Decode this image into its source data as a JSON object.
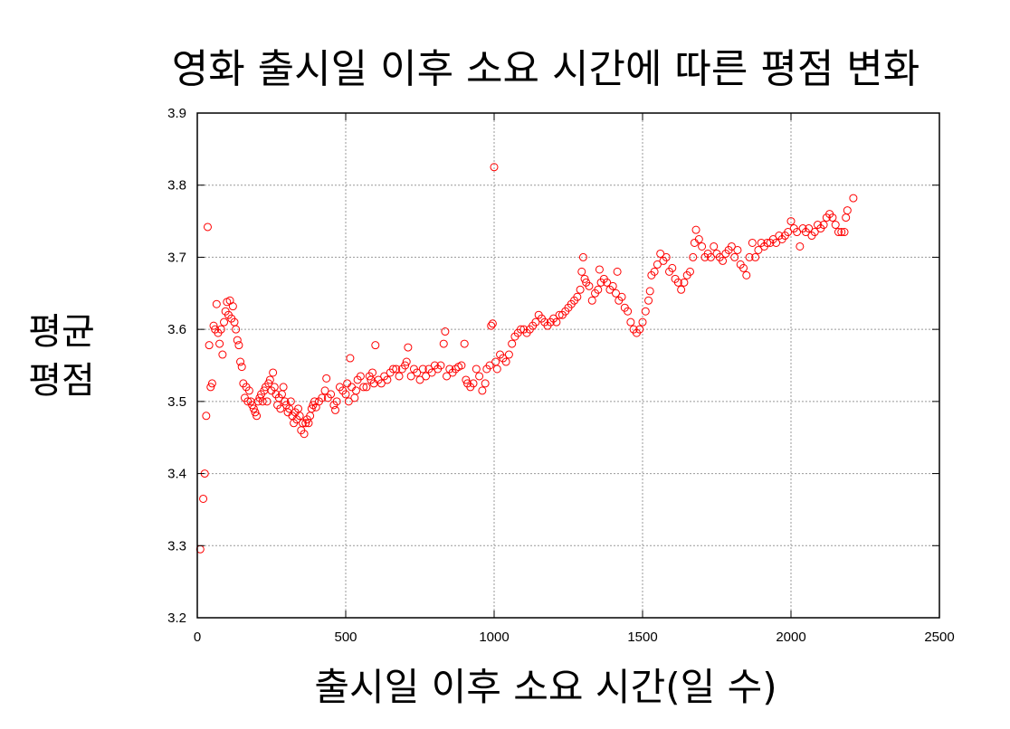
{
  "chart_data": {
    "type": "scatter",
    "title": "영화 출시일 이후 소요 시간에 따른 평점 변화",
    "xlabel": "출시일 이후 소요 시간(일 수)",
    "ylabel_lines": [
      "평균",
      "평점"
    ],
    "xlim": [
      0,
      2500
    ],
    "ylim": [
      3.2,
      3.9
    ],
    "xticks": [
      "0",
      "500",
      "1000",
      "1500",
      "2000",
      "2500"
    ],
    "yticks": [
      "3.2",
      "3.3",
      "3.4",
      "3.5",
      "3.6",
      "3.7",
      "3.8",
      "3.9"
    ],
    "grid": true,
    "marker": "open-circle",
    "series": [
      {
        "color": "#ff0000",
        "points": [
          [
            10,
            3.295
          ],
          [
            20,
            3.365
          ],
          [
            25,
            3.4
          ],
          [
            30,
            3.48
          ],
          [
            35,
            3.742
          ],
          [
            40,
            3.578
          ],
          [
            45,
            3.52
          ],
          [
            50,
            3.525
          ],
          [
            55,
            3.605
          ],
          [
            60,
            3.6
          ],
          [
            65,
            3.635
          ],
          [
            70,
            3.595
          ],
          [
            75,
            3.58
          ],
          [
            80,
            3.6
          ],
          [
            85,
            3.565
          ],
          [
            90,
            3.61
          ],
          [
            95,
            3.625
          ],
          [
            100,
            3.638
          ],
          [
            105,
            3.62
          ],
          [
            110,
            3.64
          ],
          [
            115,
            3.615
          ],
          [
            120,
            3.632
          ],
          [
            125,
            3.61
          ],
          [
            130,
            3.6
          ],
          [
            135,
            3.585
          ],
          [
            140,
            3.578
          ],
          [
            145,
            3.555
          ],
          [
            150,
            3.548
          ],
          [
            155,
            3.525
          ],
          [
            160,
            3.505
          ],
          [
            165,
            3.52
          ],
          [
            170,
            3.5
          ],
          [
            175,
            3.515
          ],
          [
            180,
            3.5
          ],
          [
            185,
            3.495
          ],
          [
            190,
            3.49
          ],
          [
            195,
            3.485
          ],
          [
            200,
            3.48
          ],
          [
            205,
            3.5
          ],
          [
            210,
            3.505
          ],
          [
            215,
            3.51
          ],
          [
            220,
            3.5
          ],
          [
            225,
            3.515
          ],
          [
            230,
            3.52
          ],
          [
            235,
            3.5
          ],
          [
            240,
            3.525
          ],
          [
            245,
            3.53
          ],
          [
            250,
            3.515
          ],
          [
            255,
            3.54
          ],
          [
            260,
            3.52
          ],
          [
            265,
            3.51
          ],
          [
            270,
            3.495
          ],
          [
            275,
            3.505
          ],
          [
            280,
            3.49
          ],
          [
            285,
            3.51
          ],
          [
            290,
            3.52
          ],
          [
            295,
            3.5
          ],
          [
            300,
            3.495
          ],
          [
            305,
            3.485
          ],
          [
            310,
            3.49
          ],
          [
            315,
            3.5
          ],
          [
            320,
            3.48
          ],
          [
            325,
            3.47
          ],
          [
            330,
            3.485
          ],
          [
            335,
            3.475
          ],
          [
            340,
            3.49
          ],
          [
            345,
            3.48
          ],
          [
            350,
            3.46
          ],
          [
            355,
            3.47
          ],
          [
            360,
            3.455
          ],
          [
            365,
            3.47
          ],
          [
            370,
            3.475
          ],
          [
            375,
            3.47
          ],
          [
            380,
            3.48
          ],
          [
            385,
            3.49
          ],
          [
            390,
            3.495
          ],
          [
            395,
            3.5
          ],
          [
            400,
            3.492
          ],
          [
            410,
            3.5
          ],
          [
            420,
            3.505
          ],
          [
            430,
            3.515
          ],
          [
            435,
            3.532
          ],
          [
            440,
            3.505
          ],
          [
            450,
            3.51
          ],
          [
            460,
            3.495
          ],
          [
            465,
            3.488
          ],
          [
            470,
            3.5
          ],
          [
            480,
            3.52
          ],
          [
            490,
            3.515
          ],
          [
            500,
            3.51
          ],
          [
            505,
            3.525
          ],
          [
            510,
            3.5
          ],
          [
            515,
            3.56
          ],
          [
            520,
            3.52
          ],
          [
            530,
            3.505
          ],
          [
            535,
            3.515
          ],
          [
            540,
            3.53
          ],
          [
            550,
            3.535
          ],
          [
            560,
            3.52
          ],
          [
            570,
            3.52
          ],
          [
            580,
            3.535
          ],
          [
            585,
            3.53
          ],
          [
            590,
            3.54
          ],
          [
            595,
            3.525
          ],
          [
            600,
            3.578
          ],
          [
            610,
            3.53
          ],
          [
            620,
            3.525
          ],
          [
            630,
            3.535
          ],
          [
            640,
            3.53
          ],
          [
            650,
            3.54
          ],
          [
            660,
            3.545
          ],
          [
            670,
            3.545
          ],
          [
            680,
            3.535
          ],
          [
            690,
            3.545
          ],
          [
            700,
            3.55
          ],
          [
            705,
            3.555
          ],
          [
            710,
            3.575
          ],
          [
            720,
            3.535
          ],
          [
            730,
            3.545
          ],
          [
            740,
            3.54
          ],
          [
            750,
            3.53
          ],
          [
            760,
            3.545
          ],
          [
            770,
            3.535
          ],
          [
            780,
            3.545
          ],
          [
            790,
            3.54
          ],
          [
            800,
            3.55
          ],
          [
            810,
            3.545
          ],
          [
            820,
            3.55
          ],
          [
            830,
            3.58
          ],
          [
            835,
            3.597
          ],
          [
            840,
            3.535
          ],
          [
            850,
            3.545
          ],
          [
            860,
            3.54
          ],
          [
            870,
            3.545
          ],
          [
            880,
            3.548
          ],
          [
            890,
            3.55
          ],
          [
            900,
            3.58
          ],
          [
            905,
            3.53
          ],
          [
            910,
            3.525
          ],
          [
            920,
            3.52
          ],
          [
            930,
            3.525
          ],
          [
            940,
            3.545
          ],
          [
            950,
            3.535
          ],
          [
            960,
            3.515
          ],
          [
            970,
            3.525
          ],
          [
            975,
            3.545
          ],
          [
            985,
            3.55
          ],
          [
            990,
            3.605
          ],
          [
            995,
            3.608
          ],
          [
            1000,
            3.825
          ],
          [
            1005,
            3.555
          ],
          [
            1010,
            3.545
          ],
          [
            1020,
            3.565
          ],
          [
            1030,
            3.56
          ],
          [
            1040,
            3.555
          ],
          [
            1050,
            3.565
          ],
          [
            1060,
            3.58
          ],
          [
            1070,
            3.59
          ],
          [
            1080,
            3.595
          ],
          [
            1090,
            3.6
          ],
          [
            1100,
            3.6
          ],
          [
            1110,
            3.595
          ],
          [
            1120,
            3.6
          ],
          [
            1130,
            3.605
          ],
          [
            1140,
            3.61
          ],
          [
            1150,
            3.62
          ],
          [
            1160,
            3.615
          ],
          [
            1170,
            3.61
          ],
          [
            1180,
            3.605
          ],
          [
            1190,
            3.61
          ],
          [
            1200,
            3.615
          ],
          [
            1210,
            3.61
          ],
          [
            1220,
            3.62
          ],
          [
            1230,
            3.62
          ],
          [
            1240,
            3.625
          ],
          [
            1250,
            3.63
          ],
          [
            1260,
            3.635
          ],
          [
            1270,
            3.64
          ],
          [
            1280,
            3.645
          ],
          [
            1290,
            3.655
          ],
          [
            1295,
            3.68
          ],
          [
            1300,
            3.7
          ],
          [
            1305,
            3.67
          ],
          [
            1310,
            3.665
          ],
          [
            1320,
            3.66
          ],
          [
            1330,
            3.64
          ],
          [
            1340,
            3.65
          ],
          [
            1350,
            3.655
          ],
          [
            1355,
            3.683
          ],
          [
            1360,
            3.665
          ],
          [
            1370,
            3.67
          ],
          [
            1380,
            3.665
          ],
          [
            1390,
            3.655
          ],
          [
            1400,
            3.66
          ],
          [
            1410,
            3.65
          ],
          [
            1415,
            3.68
          ],
          [
            1420,
            3.64
          ],
          [
            1430,
            3.645
          ],
          [
            1440,
            3.63
          ],
          [
            1450,
            3.625
          ],
          [
            1460,
            3.61
          ],
          [
            1470,
            3.6
          ],
          [
            1480,
            3.595
          ],
          [
            1490,
            3.6
          ],
          [
            1500,
            3.61
          ],
          [
            1510,
            3.625
          ],
          [
            1520,
            3.64
          ],
          [
            1525,
            3.653
          ],
          [
            1530,
            3.675
          ],
          [
            1540,
            3.68
          ],
          [
            1550,
            3.69
          ],
          [
            1560,
            3.705
          ],
          [
            1570,
            3.695
          ],
          [
            1580,
            3.7
          ],
          [
            1590,
            3.68
          ],
          [
            1600,
            3.685
          ],
          [
            1610,
            3.67
          ],
          [
            1620,
            3.665
          ],
          [
            1630,
            3.655
          ],
          [
            1640,
            3.665
          ],
          [
            1650,
            3.675
          ],
          [
            1660,
            3.68
          ],
          [
            1670,
            3.7
          ],
          [
            1675,
            3.72
          ],
          [
            1680,
            3.738
          ],
          [
            1690,
            3.725
          ],
          [
            1700,
            3.715
          ],
          [
            1710,
            3.7
          ],
          [
            1720,
            3.705
          ],
          [
            1730,
            3.7
          ],
          [
            1740,
            3.715
          ],
          [
            1750,
            3.705
          ],
          [
            1760,
            3.7
          ],
          [
            1770,
            3.695
          ],
          [
            1780,
            3.705
          ],
          [
            1790,
            3.71
          ],
          [
            1800,
            3.715
          ],
          [
            1810,
            3.7
          ],
          [
            1820,
            3.71
          ],
          [
            1830,
            3.69
          ],
          [
            1840,
            3.685
          ],
          [
            1850,
            3.675
          ],
          [
            1860,
            3.7
          ],
          [
            1870,
            3.72
          ],
          [
            1880,
            3.7
          ],
          [
            1890,
            3.71
          ],
          [
            1900,
            3.72
          ],
          [
            1910,
            3.715
          ],
          [
            1920,
            3.72
          ],
          [
            1930,
            3.72
          ],
          [
            1940,
            3.725
          ],
          [
            1950,
            3.72
          ],
          [
            1960,
            3.73
          ],
          [
            1970,
            3.725
          ],
          [
            1980,
            3.73
          ],
          [
            1990,
            3.735
          ],
          [
            2000,
            3.75
          ],
          [
            2010,
            3.74
          ],
          [
            2020,
            3.735
          ],
          [
            2030,
            3.715
          ],
          [
            2040,
            3.74
          ],
          [
            2050,
            3.735
          ],
          [
            2060,
            3.74
          ],
          [
            2070,
            3.73
          ],
          [
            2080,
            3.735
          ],
          [
            2090,
            3.745
          ],
          [
            2100,
            3.74
          ],
          [
            2110,
            3.745
          ],
          [
            2120,
            3.755
          ],
          [
            2130,
            3.76
          ],
          [
            2140,
            3.755
          ],
          [
            2150,
            3.745
          ],
          [
            2160,
            3.735
          ],
          [
            2170,
            3.735
          ],
          [
            2180,
            3.735
          ],
          [
            2185,
            3.755
          ],
          [
            2190,
            3.765
          ],
          [
            2210,
            3.782
          ]
        ]
      }
    ]
  }
}
